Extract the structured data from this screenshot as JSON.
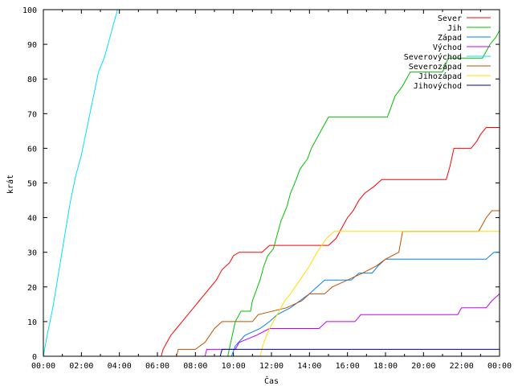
{
  "chart_data": {
    "type": "line",
    "title": "",
    "xlabel": "Čas",
    "ylabel": "krát",
    "xlim": [
      0,
      24
    ],
    "ylim": [
      0,
      100
    ],
    "x_ticks": [
      "00:00",
      "02:00",
      "04:00",
      "06:00",
      "08:00",
      "10:00",
      "12:00",
      "14:00",
      "16:00",
      "18:00",
      "20:00",
      "22:00",
      "00:00"
    ],
    "y_ticks": [
      0,
      10,
      20,
      30,
      40,
      50,
      60,
      70,
      80,
      90,
      100
    ],
    "grid": false,
    "legend_position": "top-right",
    "series": [
      {
        "name": "Sever",
        "color": "#ff0000",
        "points": [
          [
            0,
            0
          ],
          [
            6.2,
            0
          ],
          [
            6.3,
            2
          ],
          [
            6.5,
            4
          ],
          [
            6.7,
            6
          ],
          [
            7,
            8
          ],
          [
            7.3,
            10
          ],
          [
            7.6,
            12
          ],
          [
            7.9,
            14
          ],
          [
            8.2,
            16
          ],
          [
            8.5,
            18
          ],
          [
            8.8,
            20
          ],
          [
            9.1,
            22
          ],
          [
            9.4,
            25
          ],
          [
            9.8,
            27
          ],
          [
            10,
            29
          ],
          [
            10.3,
            30
          ],
          [
            11.5,
            30
          ],
          [
            11.9,
            32
          ],
          [
            15,
            32
          ],
          [
            15.4,
            34
          ],
          [
            15.6,
            36
          ],
          [
            15.8,
            38
          ],
          [
            16,
            40
          ],
          [
            16.3,
            42
          ],
          [
            16.6,
            45
          ],
          [
            16.9,
            47
          ],
          [
            17.4,
            49
          ],
          [
            17.8,
            51
          ],
          [
            21.2,
            51
          ],
          [
            21.4,
            55
          ],
          [
            21.6,
            60
          ],
          [
            22.5,
            60
          ],
          [
            22.8,
            62
          ],
          [
            23,
            64
          ],
          [
            23.3,
            66
          ],
          [
            24,
            66
          ]
        ]
      },
      {
        "name": "Jih",
        "color": "#00c000",
        "points": [
          [
            0,
            0
          ],
          [
            9.7,
            0
          ],
          [
            9.9,
            5
          ],
          [
            10.1,
            10
          ],
          [
            10.4,
            13
          ],
          [
            10.9,
            13
          ],
          [
            11,
            16
          ],
          [
            11.2,
            19
          ],
          [
            11.4,
            22
          ],
          [
            11.6,
            26
          ],
          [
            11.8,
            29
          ],
          [
            12.1,
            31
          ],
          [
            12.3,
            35
          ],
          [
            12.5,
            39
          ],
          [
            12.8,
            43
          ],
          [
            13,
            47
          ],
          [
            13.3,
            51
          ],
          [
            13.5,
            54
          ],
          [
            13.9,
            57
          ],
          [
            14.1,
            60
          ],
          [
            14.4,
            63
          ],
          [
            14.7,
            66
          ],
          [
            15,
            69
          ],
          [
            18.1,
            69
          ],
          [
            18.3,
            72
          ],
          [
            18.5,
            75
          ],
          [
            18.9,
            78
          ],
          [
            19.1,
            80
          ],
          [
            19.3,
            82
          ],
          [
            21,
            82
          ],
          [
            21.3,
            86
          ],
          [
            23.1,
            86
          ],
          [
            23.5,
            90
          ],
          [
            23.8,
            92
          ],
          [
            24,
            94
          ]
        ]
      },
      {
        "name": "Západ",
        "color": "#0080ff",
        "points": [
          [
            0,
            0
          ],
          [
            9.9,
            0
          ],
          [
            10.1,
            3
          ],
          [
            10.6,
            6
          ],
          [
            11.4,
            8
          ],
          [
            11.9,
            10
          ],
          [
            12.3,
            12
          ],
          [
            13,
            14
          ],
          [
            13.5,
            16
          ],
          [
            14,
            18
          ],
          [
            14.4,
            20
          ],
          [
            14.8,
            22
          ],
          [
            16.2,
            22
          ],
          [
            16.6,
            24
          ],
          [
            17.3,
            24
          ],
          [
            17.6,
            26
          ],
          [
            18,
            28
          ],
          [
            22.8,
            28
          ],
          [
            23.3,
            28
          ],
          [
            23.7,
            30
          ],
          [
            24,
            30
          ]
        ]
      },
      {
        "name": "Východ",
        "color": "#c000ff",
        "points": [
          [
            0,
            0
          ],
          [
            8.5,
            0
          ],
          [
            8.6,
            2
          ],
          [
            10.1,
            2
          ],
          [
            10.3,
            4
          ],
          [
            11.2,
            6
          ],
          [
            11.9,
            8
          ],
          [
            14.5,
            8
          ],
          [
            14.9,
            10
          ],
          [
            16.4,
            10
          ],
          [
            16.7,
            12
          ],
          [
            21.8,
            12
          ],
          [
            22,
            14
          ],
          [
            23.3,
            14
          ],
          [
            23.6,
            16
          ],
          [
            24,
            18
          ]
        ]
      },
      {
        "name": "Severovýchod",
        "color": "#00e0ff",
        "points": [
          [
            0,
            0
          ],
          [
            0.2,
            6
          ],
          [
            0.5,
            14
          ],
          [
            0.8,
            24
          ],
          [
            1.1,
            34
          ],
          [
            1.4,
            44
          ],
          [
            1.7,
            52
          ],
          [
            2,
            58
          ],
          [
            2.3,
            66
          ],
          [
            2.6,
            74
          ],
          [
            2.9,
            82
          ],
          [
            3.2,
            86
          ],
          [
            3.4,
            90
          ],
          [
            3.6,
            94
          ],
          [
            3.9,
            100
          ]
        ]
      },
      {
        "name": "Severozápad",
        "color": "#c05000",
        "points": [
          [
            0,
            0
          ],
          [
            7,
            0
          ],
          [
            7.1,
            2
          ],
          [
            8,
            2
          ],
          [
            8.5,
            4
          ],
          [
            9,
            8
          ],
          [
            9.4,
            10
          ],
          [
            11,
            10
          ],
          [
            11.3,
            12
          ],
          [
            12.8,
            14
          ],
          [
            13.6,
            16
          ],
          [
            14,
            18
          ],
          [
            14.8,
            18
          ],
          [
            15.2,
            20
          ],
          [
            16,
            22
          ],
          [
            16.8,
            24
          ],
          [
            17.5,
            26
          ],
          [
            18,
            28
          ],
          [
            18.7,
            30
          ],
          [
            18.9,
            36
          ],
          [
            22.9,
            36
          ],
          [
            23.1,
            38
          ],
          [
            23.3,
            40
          ],
          [
            23.6,
            42
          ],
          [
            24,
            42
          ]
        ]
      },
      {
        "name": "Jihozápad",
        "color": "#ffdd00",
        "points": [
          [
            0,
            0
          ],
          [
            11.4,
            0
          ],
          [
            11.6,
            4
          ],
          [
            11.9,
            8
          ],
          [
            12.3,
            12
          ],
          [
            12.7,
            16
          ],
          [
            13,
            18
          ],
          [
            13.5,
            22
          ],
          [
            14,
            26
          ],
          [
            14.4,
            30
          ],
          [
            14.9,
            34
          ],
          [
            15.3,
            36
          ],
          [
            24,
            36
          ]
        ]
      },
      {
        "name": "Jihovýchod",
        "color": "#0000a0",
        "points": [
          [
            0,
            0
          ],
          [
            9.3,
            0
          ],
          [
            9.4,
            2
          ],
          [
            24,
            2
          ]
        ]
      }
    ]
  }
}
